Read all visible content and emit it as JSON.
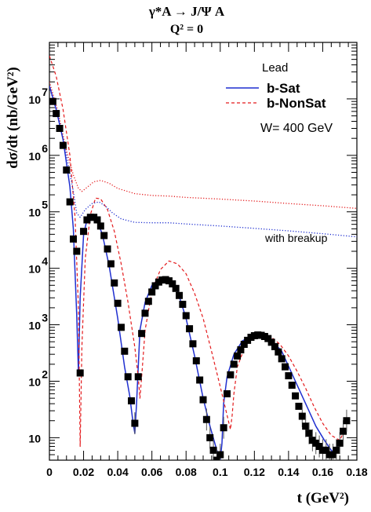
{
  "chart_data": {
    "type": "line",
    "title": "γ*A → J/Ψ A",
    "subtitle": "Q² = 0",
    "xlabel": "t  (GeV²)",
    "ylabel": "dσ/dt  (nb/GeV²)",
    "xlim": [
      0,
      0.18
    ],
    "ylim": [
      4,
      100000000
    ],
    "yscale": "log",
    "x_ticks": [
      0,
      0.02,
      0.04,
      0.06,
      0.08,
      0.1,
      0.12,
      0.14,
      0.16,
      0.18
    ],
    "x_tick_labels": [
      "0",
      "0.02",
      "0.04",
      "0.06",
      "0.08",
      "0.1",
      "0.12",
      "0.14",
      "0.16",
      "0.18"
    ],
    "y_ticks": [
      10,
      100,
      1000,
      10000,
      100000,
      1000000,
      10000000
    ],
    "y_tick_labels": [
      {
        "base": "10",
        "exp": ""
      },
      {
        "base": "10",
        "exp": "2"
      },
      {
        "base": "10",
        "exp": "3"
      },
      {
        "base": "10",
        "exp": "4"
      },
      {
        "base": "10",
        "exp": "5"
      },
      {
        "base": "10",
        "exp": "6"
      },
      {
        "base": "10",
        "exp": "7"
      }
    ],
    "legend": {
      "placement": "top-right",
      "header": "Lead",
      "entries": [
        {
          "label": "b-Sat",
          "color": "#1f2fd0",
          "style": "solid"
        },
        {
          "label": "b-NonSat",
          "color": "#e41a1c",
          "style": "dashed"
        }
      ],
      "note": "W= 400 GeV"
    },
    "annotations": [
      {
        "text": "with breakup",
        "x": 0.14,
        "y": 47000
      }
    ],
    "colors": {
      "sat": "#1f2fd0",
      "nonsat": "#e41a1c",
      "points": "#000000"
    },
    "series": [
      {
        "name": "b-Sat",
        "style": "solid",
        "color": "#1f2fd0",
        "x": [
          0,
          0.004,
          0.008,
          0.012,
          0.014,
          0.016,
          0.017,
          0.018,
          0.02,
          0.022,
          0.025,
          0.028,
          0.031,
          0.035,
          0.04,
          0.044,
          0.047,
          0.049,
          0.05,
          0.051,
          0.053,
          0.056,
          0.06,
          0.065,
          0.07,
          0.075,
          0.08,
          0.085,
          0.09,
          0.094,
          0.098,
          0.1,
          0.101,
          0.102,
          0.104,
          0.108,
          0.113,
          0.12,
          0.128,
          0.136,
          0.144,
          0.15,
          0.156,
          0.161,
          0.165,
          0.168
        ],
        "y": [
          17000000,
          6500000,
          1900000,
          280000,
          50000,
          1500,
          140,
          3000,
          40000,
          72000,
          82000,
          68000,
          40000,
          11000,
          1300,
          180,
          55,
          18,
          12,
          40,
          800,
          2500,
          5000,
          6800,
          6500,
          4000,
          1300,
          280,
          50,
          16,
          6,
          4,
          8,
          40,
          120,
          300,
          520,
          680,
          620,
          340,
          100,
          40,
          16,
          9,
          6,
          5
        ]
      },
      {
        "name": "b-NonSat",
        "style": "dashed",
        "color": "#e41a1c",
        "x": [
          0,
          0.004,
          0.008,
          0.012,
          0.015,
          0.017,
          0.018,
          0.019,
          0.021,
          0.024,
          0.027,
          0.03,
          0.034,
          0.038,
          0.042,
          0.046,
          0.05,
          0.052,
          0.053,
          0.054,
          0.056,
          0.06,
          0.065,
          0.07,
          0.075,
          0.08,
          0.085,
          0.09,
          0.095,
          0.1,
          0.104,
          0.106,
          0.107,
          0.108,
          0.11,
          0.115,
          0.12,
          0.125,
          0.13,
          0.135,
          0.14,
          0.145,
          0.15,
          0.155,
          0.16,
          0.165,
          0.17,
          0.172,
          0.173
        ],
        "y": [
          58000000,
          25000000,
          6500000,
          1000000,
          80000,
          2000,
          7,
          400,
          15000,
          90000,
          175000,
          170000,
          110000,
          45000,
          12000,
          2500,
          400,
          120,
          50,
          120,
          800,
          4000,
          9500,
          13500,
          12000,
          8000,
          3600,
          1300,
          330,
          80,
          25,
          14,
          25,
          60,
          180,
          450,
          600,
          650,
          600,
          450,
          280,
          150,
          75,
          35,
          18,
          11,
          9,
          12,
          15
        ]
      },
      {
        "name": "with breakup (b-NonSat)",
        "style": "dotted",
        "color": "#e41a1c",
        "x": [
          0,
          0.005,
          0.01,
          0.014,
          0.017,
          0.019,
          0.022,
          0.026,
          0.03,
          0.035,
          0.04,
          0.05,
          0.06,
          0.07,
          0.08,
          0.1,
          0.12,
          0.14,
          0.16,
          0.18
        ],
        "y": [
          20000000,
          6000000,
          1200000,
          450000,
          260000,
          230000,
          270000,
          340000,
          360000,
          320000,
          260000,
          210000,
          195000,
          190000,
          180000,
          168000,
          155000,
          140000,
          128000,
          115000
        ]
      },
      {
        "name": "with breakup (b-Sat)",
        "style": "dotted",
        "color": "#1f2fd0",
        "x": [
          0,
          0.005,
          0.01,
          0.014,
          0.016,
          0.018,
          0.021,
          0.025,
          0.029,
          0.033,
          0.037,
          0.042,
          0.05,
          0.06,
          0.07,
          0.08,
          0.1,
          0.12,
          0.14,
          0.16,
          0.18
        ],
        "y": [
          16000000,
          5000000,
          1000000,
          230000,
          95000,
          80000,
          110000,
          140000,
          150000,
          125000,
          95000,
          75000,
          65000,
          64000,
          64000,
          61000,
          56000,
          51000,
          46000,
          41000,
          36000
        ]
      },
      {
        "name": "points",
        "style": "markers",
        "color": "#000000",
        "x": [
          0.002,
          0.004,
          0.006,
          0.008,
          0.01,
          0.012,
          0.014,
          0.016,
          0.018,
          0.02,
          0.022,
          0.024,
          0.026,
          0.028,
          0.03,
          0.032,
          0.034,
          0.036,
          0.038,
          0.04,
          0.042,
          0.044,
          0.046,
          0.048,
          0.05,
          0.052,
          0.054,
          0.056,
          0.058,
          0.06,
          0.062,
          0.064,
          0.066,
          0.068,
          0.07,
          0.072,
          0.074,
          0.076,
          0.078,
          0.08,
          0.082,
          0.084,
          0.086,
          0.088,
          0.09,
          0.092,
          0.094,
          0.096,
          0.098,
          0.1,
          0.102,
          0.104,
          0.106,
          0.108,
          0.11,
          0.112,
          0.114,
          0.116,
          0.118,
          0.12,
          0.122,
          0.124,
          0.126,
          0.128,
          0.13,
          0.132,
          0.134,
          0.136,
          0.138,
          0.14,
          0.142,
          0.144,
          0.146,
          0.148,
          0.15,
          0.152,
          0.154,
          0.156,
          0.158,
          0.16,
          0.162,
          0.164,
          0.166,
          0.168,
          0.17,
          0.172,
          0.174
        ],
        "y": [
          9000000,
          5500000,
          3000000,
          1500000,
          550000,
          150000,
          33000,
          20000,
          140,
          45000,
          72000,
          80000,
          80000,
          72000,
          56000,
          38000,
          22000,
          12000,
          5500,
          2400,
          900,
          340,
          120,
          45,
          18,
          120,
          700,
          1600,
          2600,
          3800,
          4900,
          5700,
          6200,
          6300,
          6000,
          5300,
          4400,
          3300,
          2300,
          1450,
          850,
          460,
          230,
          105,
          47,
          21,
          10,
          6,
          4,
          5,
          15,
          60,
          130,
          200,
          280,
          360,
          450,
          530,
          600,
          640,
          660,
          650,
          620,
          570,
          490,
          410,
          330,
          250,
          180,
          125,
          85,
          55,
          36,
          24,
          16,
          12,
          9,
          8,
          7,
          6,
          6,
          5,
          5,
          6,
          8,
          13,
          20
        ]
      }
    ]
  }
}
